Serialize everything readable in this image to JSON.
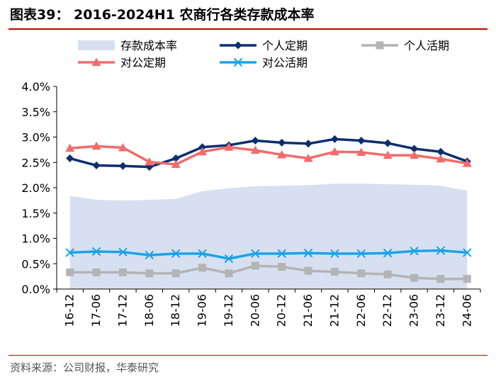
{
  "header": {
    "title": "图表39：  2016-2024H1 农商行各类存款成本率"
  },
  "footer": {
    "source": "资料来源：公司财报，华泰研究"
  },
  "chart_data": {
    "type": "line",
    "title": "2016-2024H1 农商行各类存款成本率",
    "xlabel": "",
    "ylabel": "",
    "ylim": [
      0,
      4.0
    ],
    "yticks": [
      "0.0%",
      "0.5%",
      "1.0%",
      "1.5%",
      "2.0%",
      "2.5%",
      "3.0%",
      "3.5%",
      "4.0%"
    ],
    "grid": false,
    "legend_position": "top",
    "categories": [
      "16-12",
      "17-06",
      "17-12",
      "18-06",
      "18-12",
      "19-06",
      "19-12",
      "20-06",
      "20-12",
      "21-06",
      "21-12",
      "22-06",
      "22-12",
      "23-06",
      "23-12",
      "24-06"
    ],
    "series": [
      {
        "name": "存款成本率",
        "kind": "area",
        "color": "#d6e0f0",
        "values": [
          1.84,
          1.76,
          1.75,
          1.76,
          1.78,
          1.93,
          1.99,
          2.03,
          2.04,
          2.05,
          2.08,
          2.08,
          2.07,
          2.06,
          2.04,
          1.94
        ]
      },
      {
        "name": "个人定期",
        "kind": "line",
        "marker": "diamond",
        "color": "#0b2f6e",
        "values": [
          2.58,
          2.44,
          2.43,
          2.41,
          2.58,
          2.8,
          2.84,
          2.93,
          2.89,
          2.87,
          2.96,
          2.93,
          2.88,
          2.77,
          2.71,
          2.52
        ]
      },
      {
        "name": "个人活期",
        "kind": "line",
        "marker": "square",
        "color": "#b4b4b4",
        "values": [
          0.33,
          0.33,
          0.33,
          0.31,
          0.31,
          0.42,
          0.31,
          0.46,
          0.44,
          0.36,
          0.34,
          0.31,
          0.29,
          0.22,
          0.2,
          0.2
        ]
      },
      {
        "name": "对公定期",
        "kind": "line",
        "marker": "triangle",
        "color": "#f26b6b",
        "values": [
          2.78,
          2.82,
          2.79,
          2.51,
          2.46,
          2.71,
          2.8,
          2.74,
          2.65,
          2.58,
          2.71,
          2.7,
          2.64,
          2.64,
          2.57,
          2.48
        ]
      },
      {
        "name": "对公活期",
        "kind": "line",
        "marker": "x",
        "color": "#1aa3e8",
        "values": [
          0.72,
          0.74,
          0.73,
          0.67,
          0.7,
          0.7,
          0.6,
          0.7,
          0.7,
          0.71,
          0.7,
          0.7,
          0.71,
          0.75,
          0.76,
          0.72
        ]
      }
    ],
    "legend": [
      {
        "name": "存款成本率",
        "icon": "area"
      },
      {
        "name": "个人定期",
        "icon": "diamond"
      },
      {
        "name": "个人活期",
        "icon": "square"
      },
      {
        "name": "对公定期",
        "icon": "triangle"
      },
      {
        "name": "对公活期",
        "icon": "x"
      }
    ]
  }
}
